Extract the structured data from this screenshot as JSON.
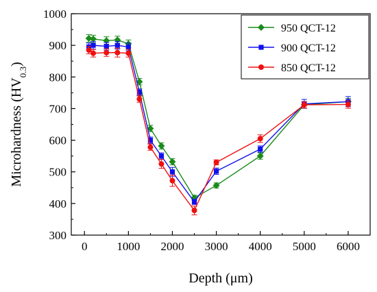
{
  "chart_data": {
    "type": "line",
    "xlabel": "Depth (μm)",
    "ylabel": {
      "main": "Microhardness (HV",
      "sub": "0.3",
      "close": ")"
    },
    "xlim": [
      -300,
      6500
    ],
    "ylim": [
      300,
      1000
    ],
    "xticks": [
      0,
      1000,
      2000,
      3000,
      4000,
      5000,
      6000
    ],
    "yticks": [
      300,
      400,
      500,
      600,
      700,
      800,
      900,
      1000
    ],
    "legend_position": "top-right",
    "grid": false,
    "series": [
      {
        "name": "950 QCT-12",
        "color": "#1a8a1a",
        "marker": "diamond",
        "x": [
          100,
          200,
          500,
          750,
          1000,
          1250,
          1500,
          1750,
          2000,
          2500,
          3000,
          4000,
          5000,
          6000
        ],
        "y": [
          922,
          920,
          915,
          917,
          905,
          785,
          637,
          582,
          532,
          418,
          457,
          550,
          712,
          722
        ],
        "err": [
          12,
          12,
          12,
          12,
          12,
          10,
          10,
          10,
          10,
          8,
          8,
          10,
          10,
          10
        ]
      },
      {
        "name": "900 QCT-12",
        "color": "#1010ee",
        "marker": "square",
        "x": [
          100,
          200,
          500,
          750,
          1000,
          1250,
          1500,
          1750,
          2000,
          2500,
          3000,
          4000,
          5000,
          6000
        ],
        "y": [
          895,
          900,
          897,
          900,
          895,
          752,
          600,
          550,
          500,
          405,
          502,
          572,
          715,
          722
        ],
        "err": [
          12,
          12,
          12,
          12,
          12,
          10,
          10,
          10,
          14,
          8,
          10,
          10,
          14,
          16
        ]
      },
      {
        "name": "850 QCT-12",
        "color": "#ee1010",
        "marker": "circle",
        "x": [
          100,
          200,
          500,
          750,
          1000,
          1250,
          1500,
          1750,
          2000,
          2500,
          3000,
          4000,
          5000,
          6000
        ],
        "y": [
          885,
          875,
          877,
          877,
          875,
          730,
          578,
          525,
          472,
          378,
          530,
          605,
          712,
          713
        ],
        "err": [
          12,
          12,
          12,
          14,
          12,
          10,
          10,
          14,
          18,
          14,
          8,
          12,
          10,
          12
        ]
      }
    ]
  }
}
